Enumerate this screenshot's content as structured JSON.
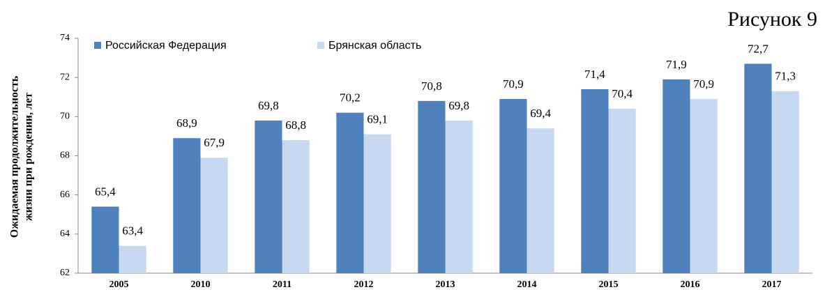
{
  "figure_label": "Рисунок 9",
  "chart_data": {
    "type": "bar",
    "ylabel": [
      "Ожидаемая продолжительность",
      "жизни при рождении, лет"
    ],
    "categories": [
      "2005",
      "2010",
      "2011",
      "2012",
      "2013",
      "2014",
      "2015",
      "2016",
      "2017"
    ],
    "series": [
      {
        "name": "Российская Федерация",
        "color": "#4f81bd",
        "values": [
          65.4,
          68.9,
          69.8,
          70.2,
          70.8,
          70.9,
          71.4,
          71.9,
          72.7
        ],
        "value_labels": [
          "65,4",
          "68,9",
          "69,8",
          "70,2",
          "70,8",
          "70,9",
          "71,4",
          "71,9",
          "72,7"
        ]
      },
      {
        "name": "Брянская область",
        "color": "#c6d9f1",
        "values": [
          63.4,
          67.9,
          68.8,
          69.1,
          69.8,
          69.4,
          70.4,
          70.9,
          71.3
        ],
        "value_labels": [
          "63,4",
          "67,9",
          "68,8",
          "69,1",
          "69,8",
          "69,4",
          "70,4",
          "70,9",
          "71,3"
        ]
      }
    ],
    "ylim": [
      62,
      74
    ],
    "yticks": [
      62,
      64,
      66,
      68,
      70,
      72,
      74
    ],
    "legend": "top-left"
  }
}
